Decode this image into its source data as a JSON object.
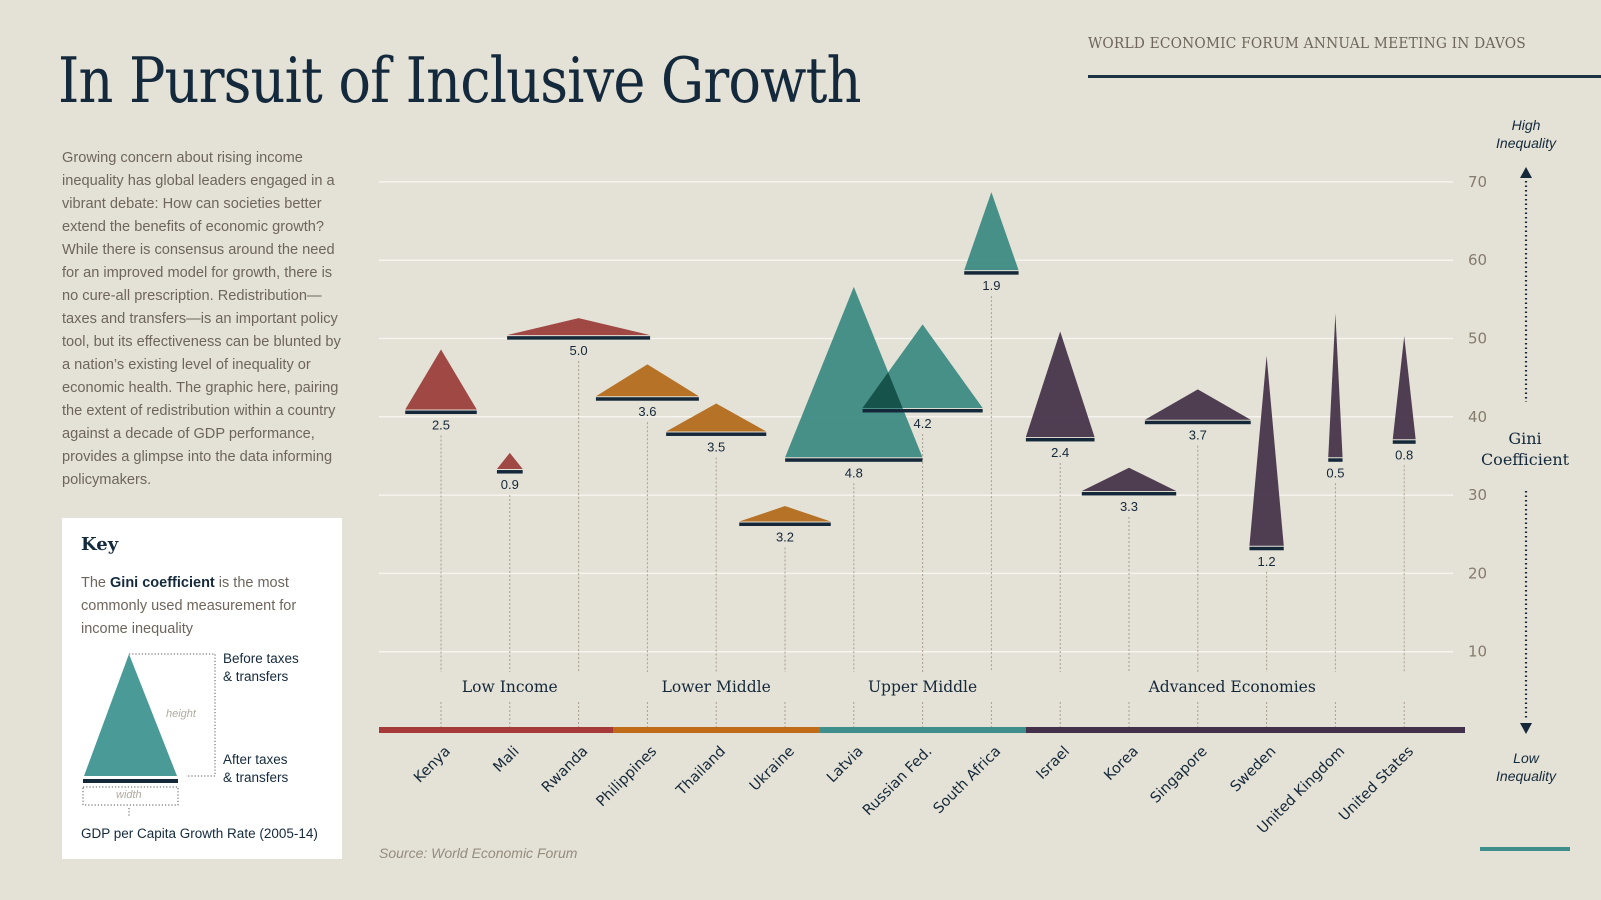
{
  "header": {
    "title": "In Pursuit of Inclusive Growth",
    "event": "WORLD ECONOMIC FORUM ANNUAL MEETING IN DAVOS"
  },
  "intro": "Growing concern about rising income inequality has global leaders engaged in a vibrant debate: How can societies better extend the benefits of economic growth? While there is consensus around the need for an improved model for growth, there is no cure-all prescription. Redistribution—taxes and transfers—is an important policy tool, but its effectiveness can be blunted by a nation’s existing level of inequality or economic health. The graphic here, pairing the extent of redistribution within a country against a decade of GDP performance, provides a glimpse into the data informing policymakers.",
  "key": {
    "title": "Key",
    "desc_pre": "The ",
    "desc_bold": "Gini coefficient",
    "desc_post": " is the most commonly used measurement for income inequality",
    "before_label_1": "Before taxes",
    "before_label_2": "& transfers",
    "after_label_1": "After taxes",
    "after_label_2": "& transfers",
    "height_hint": "height",
    "width_hint": "width",
    "width_meaning": "GDP per Capita Growth Rate (2005-14)",
    "swatch_color": "#4a9b98"
  },
  "axis": {
    "high_1": "High",
    "high_2": "Inequality",
    "low_1": "Low",
    "low_2": "Inequality",
    "gini_1": "Gini",
    "gini_2": "Coefficient"
  },
  "source": "Source: World Economic Forum",
  "chart_data": {
    "type": "triangle-range",
    "title": "In Pursuit of Inclusive Growth",
    "ylabel": "Gini Coefficient",
    "ylim": [
      0,
      70
    ],
    "yticks": [
      10,
      20,
      30,
      40,
      50,
      60,
      70
    ],
    "grid": true,
    "encoding": {
      "apex": "Gini before taxes & transfers",
      "base": "Gini after taxes & transfers",
      "width": "GDP per Capita Growth Rate (2005-14), %"
    },
    "groups": [
      {
        "name": "Low Income",
        "color": "#9b3f3c",
        "bar_color": "#a63a3b",
        "countries": [
          0,
          1,
          2
        ]
      },
      {
        "name": "Lower Middle",
        "color": "#b36b1c",
        "bar_color": "#c06b17",
        "countries": [
          3,
          4,
          5
        ]
      },
      {
        "name": "Upper Middle",
        "color": "#3e8b84",
        "bar_color": "#3e8e8c",
        "countries": [
          6,
          7,
          8
        ]
      },
      {
        "name": "Advanced Economies",
        "color": "#47354b",
        "bar_color": "#43304a",
        "countries": [
          9,
          10,
          11,
          12,
          13,
          14
        ]
      }
    ],
    "countries": [
      {
        "name": "Kenya",
        "before": 48.6,
        "after": 40.8,
        "gdp_growth": 2.5,
        "label": "2.5"
      },
      {
        "name": "Mali",
        "before": 35.4,
        "after": 33.2,
        "gdp_growth": 0.9,
        "label": "0.9"
      },
      {
        "name": "Rwanda",
        "before": 52.6,
        "after": 50.3,
        "gdp_growth": 5.0,
        "label": "5.0"
      },
      {
        "name": "Philippines",
        "before": 46.7,
        "after": 42.5,
        "gdp_growth": 3.6,
        "label": "3.6"
      },
      {
        "name": "Thailand",
        "before": 41.7,
        "after": 38.0,
        "gdp_growth": 3.5,
        "label": "3.5"
      },
      {
        "name": "Ukraine",
        "before": 28.6,
        "after": 26.5,
        "gdp_growth": 3.2,
        "label": "3.2"
      },
      {
        "name": "Latvia",
        "before": 56.6,
        "after": 34.7,
        "gdp_growth": 4.8,
        "label": "4.8"
      },
      {
        "name": "Russian Fed.",
        "before": 51.8,
        "after": 41.0,
        "gdp_growth": 4.2,
        "label": "4.2"
      },
      {
        "name": "South Africa",
        "before": 68.7,
        "after": 58.6,
        "gdp_growth": 1.9,
        "label": "1.9"
      },
      {
        "name": "Israel",
        "before": 50.9,
        "after": 37.3,
        "gdp_growth": 2.4,
        "label": "2.4"
      },
      {
        "name": "Korea",
        "before": 33.5,
        "after": 30.4,
        "gdp_growth": 3.3,
        "label": "3.3"
      },
      {
        "name": "Singapore",
        "before": 43.5,
        "after": 39.5,
        "gdp_growth": 3.7,
        "label": "3.7"
      },
      {
        "name": "Sweden",
        "before": 47.8,
        "after": 23.4,
        "gdp_growth": 1.2,
        "label": "1.2"
      },
      {
        "name": "United Kingdom",
        "before": 53.2,
        "after": 34.7,
        "gdp_growth": 0.5,
        "label": "0.5"
      },
      {
        "name": "United States",
        "before": 50.3,
        "after": 37.0,
        "gdp_growth": 0.8,
        "label": "0.8"
      }
    ]
  }
}
